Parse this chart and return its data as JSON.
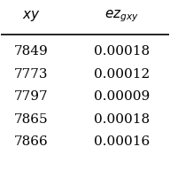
{
  "col1_header": "$xy$",
  "col2_header": "$ez_{gxy}$",
  "col1_values": [
    "7849",
    "7773",
    "7797",
    "7865",
    "7866"
  ],
  "col2_values": [
    "0.00018",
    "0.00012",
    "0.00009",
    "0.00018",
    "0.00016"
  ],
  "background_color": "#ffffff",
  "header_line_color": "black",
  "font_size": 11,
  "header_font_size": 11
}
